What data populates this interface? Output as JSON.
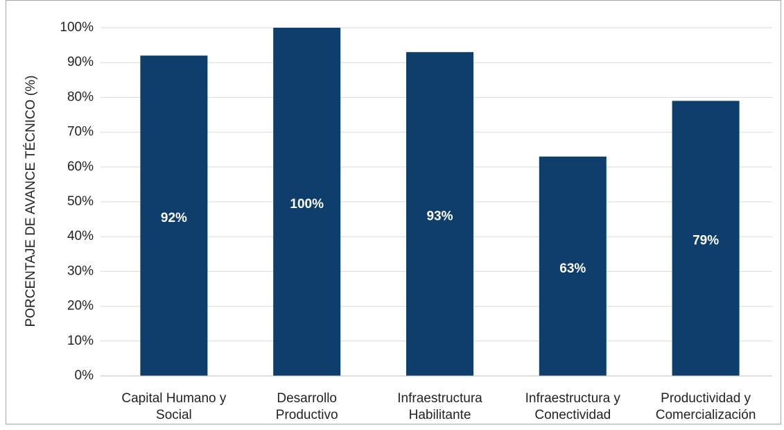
{
  "chart_data": {
    "type": "bar",
    "y_label": "PORCENTAJE DE AVANCE TÉCNICO (%)",
    "categories": [
      "Capital Humano y Social",
      "Desarrollo Productivo",
      "Infraestructura Habilitante",
      "Infraestructura y Conectividad",
      "Productividad y Comercialización"
    ],
    "values": [
      92,
      100,
      93,
      63,
      79
    ],
    "value_labels": [
      "92%",
      "100%",
      "93%",
      "63%",
      "79%"
    ],
    "color": "#0e3e6b",
    "ylim": [
      0,
      100
    ],
    "yticks": [
      {
        "value": 0,
        "label": "0%"
      },
      {
        "value": 10,
        "label": "10%"
      },
      {
        "value": 20,
        "label": "20%"
      },
      {
        "value": 30,
        "label": "30%"
      },
      {
        "value": 40,
        "label": "40%"
      },
      {
        "value": 50,
        "label": "50%"
      },
      {
        "value": 60,
        "label": "60%"
      },
      {
        "value": 70,
        "label": "70%"
      },
      {
        "value": 80,
        "label": "80%"
      },
      {
        "value": 90,
        "label": "90%"
      },
      {
        "value": 100,
        "label": "100%"
      }
    ],
    "grid": true
  }
}
